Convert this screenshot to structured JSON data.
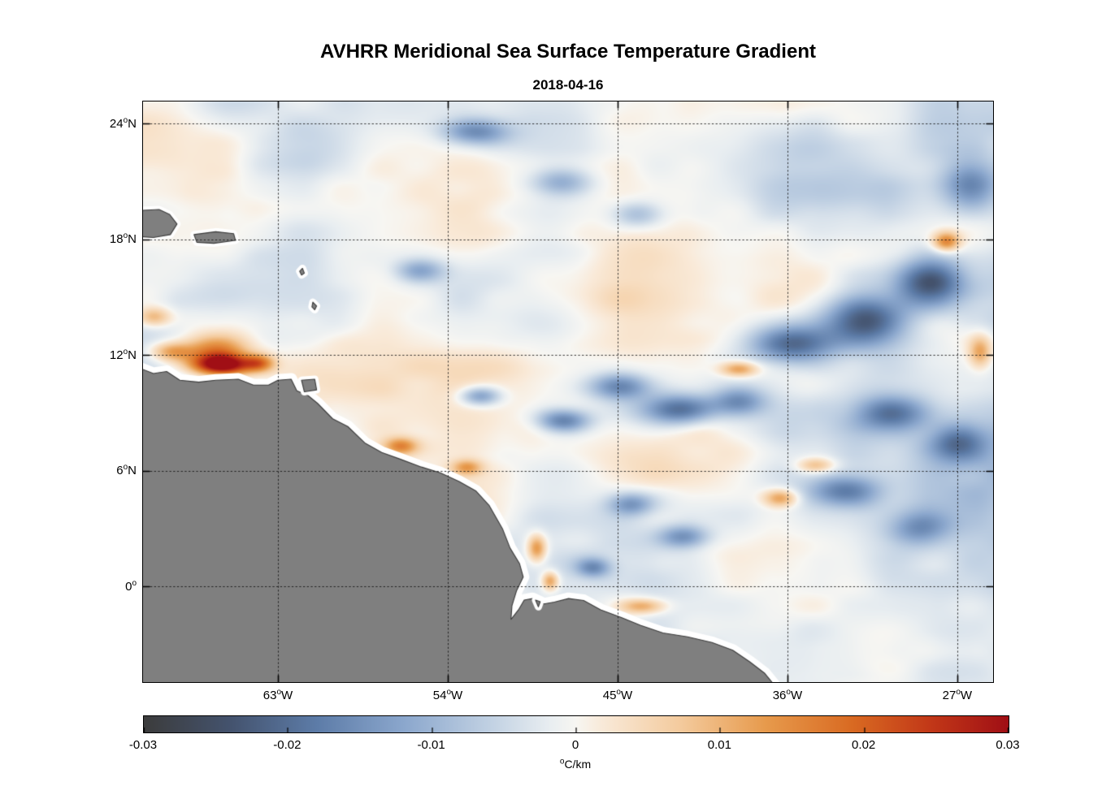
{
  "title": "AVHRR Meridional Sea Surface Temperature Gradient",
  "date": "2018-04-16",
  "chart_data": {
    "type": "heatmap",
    "title": "AVHRR Meridional Sea Surface Temperature Gradient",
    "subtitle": "2018-04-16",
    "lon_range": [
      -70.15,
      -25.1
    ],
    "lat_range": [
      -4.95,
      25.15
    ],
    "value_range": [
      -0.03,
      0.03
    ],
    "grid": {
      "on": true,
      "style": "dotted",
      "color": "rgba(20,20,20,0.85)"
    },
    "land_color": "#7f7f7f",
    "coast_halo_color": "#ffffff",
    "coast_line_color": "#3a3a3a",
    "lat_ticks": [
      {
        "value": 24,
        "text": "24",
        "sup": "o",
        "suffix": "N"
      },
      {
        "value": 18,
        "text": "18",
        "sup": "o",
        "suffix": "N"
      },
      {
        "value": 12,
        "text": "12",
        "sup": "o",
        "suffix": "N"
      },
      {
        "value": 6,
        "text": "6",
        "sup": "o",
        "suffix": "N"
      },
      {
        "value": 0,
        "text": "0",
        "sup": "o",
        "suffix": ""
      }
    ],
    "lon_ticks": [
      {
        "value": -63,
        "text": "63",
        "sup": "o",
        "suffix": "W"
      },
      {
        "value": -54,
        "text": "54",
        "sup": "o",
        "suffix": "W"
      },
      {
        "value": -45,
        "text": "45",
        "sup": "o",
        "suffix": "W"
      },
      {
        "value": -36,
        "text": "36",
        "sup": "o",
        "suffix": "W"
      },
      {
        "value": -27,
        "text": "27",
        "sup": "o",
        "suffix": "W"
      }
    ],
    "colorbar": {
      "ticks": [
        "-0.03",
        "-0.02",
        "-0.01",
        "0",
        "0.01",
        "0.02",
        "0.03"
      ],
      "label_sup": "o",
      "label_text": "C/km",
      "min": -0.03,
      "max": 0.03
    },
    "colormap": [
      [
        0.0,
        "#3c3c3c"
      ],
      [
        0.1,
        "#44536e"
      ],
      [
        0.2,
        "#5d7ca8"
      ],
      [
        0.3,
        "#8ba7cd"
      ],
      [
        0.4,
        "#c1d1e3"
      ],
      [
        0.47,
        "#e9eef1"
      ],
      [
        0.5,
        "#f7f6f2"
      ],
      [
        0.53,
        "#f9ead9"
      ],
      [
        0.62,
        "#f4cb9e"
      ],
      [
        0.72,
        "#e79a4c"
      ],
      [
        0.82,
        "#d96a22"
      ],
      [
        0.91,
        "#c23818"
      ],
      [
        1.0,
        "#a00f15"
      ]
    ],
    "noise": {
      "seed": 416,
      "octaves": [
        [
          230,
          0.36
        ],
        [
          115,
          0.3
        ],
        [
          56,
          0.22
        ],
        [
          27,
          0.12
        ]
      ],
      "amplitude": 0.0125,
      "x_stretch": 1.8,
      "bias_left": 0.0015,
      "bias_right": -0.0055
    },
    "features": [
      [
        -66.0,
        11.5,
        1.6,
        0.55,
        0.034
      ],
      [
        -66.4,
        12.3,
        1.9,
        0.8,
        0.017
      ],
      [
        -68.7,
        12.2,
        1.1,
        0.5,
        0.013
      ],
      [
        -69.6,
        14.0,
        0.9,
        0.5,
        0.012
      ],
      [
        -64.0,
        11.6,
        0.8,
        0.45,
        0.015
      ],
      [
        -56.5,
        7.3,
        0.9,
        0.45,
        0.015
      ],
      [
        -53.0,
        6.2,
        0.8,
        0.4,
        0.012
      ],
      [
        -49.3,
        2.0,
        0.5,
        0.7,
        0.016
      ],
      [
        -48.6,
        0.3,
        0.45,
        0.5,
        0.015
      ],
      [
        -43.7,
        -1.0,
        1.2,
        0.4,
        0.013
      ],
      [
        -52.3,
        9.9,
        1.1,
        0.5,
        -0.015
      ],
      [
        -47.9,
        8.6,
        1.4,
        0.6,
        -0.017
      ],
      [
        -44.9,
        10.4,
        1.6,
        0.7,
        -0.016
      ],
      [
        -41.8,
        9.2,
        2.0,
        0.8,
        -0.019
      ],
      [
        -38.6,
        9.6,
        1.4,
        0.8,
        -0.015
      ],
      [
        -44.3,
        4.3,
        1.2,
        0.6,
        -0.012
      ],
      [
        -41.5,
        2.6,
        1.3,
        0.6,
        -0.013
      ],
      [
        -46.3,
        1.0,
        0.9,
        0.5,
        -0.012
      ],
      [
        -35.8,
        12.6,
        2.2,
        1.0,
        -0.019
      ],
      [
        -32.0,
        13.8,
        2.0,
        1.2,
        -0.021
      ],
      [
        -28.5,
        15.7,
        1.8,
        1.3,
        -0.019
      ],
      [
        -26.3,
        20.8,
        1.6,
        1.3,
        -0.017
      ],
      [
        -30.5,
        9.0,
        2.0,
        0.9,
        -0.015
      ],
      [
        -27.0,
        7.5,
        1.5,
        1.0,
        -0.015
      ],
      [
        -33.0,
        5.0,
        1.8,
        0.8,
        -0.013
      ],
      [
        -29.0,
        3.0,
        1.6,
        0.9,
        -0.011
      ],
      [
        -52.5,
        23.6,
        1.8,
        0.7,
        -0.015
      ],
      [
        -55.5,
        16.4,
        1.3,
        0.6,
        -0.011
      ],
      [
        -48.0,
        21.0,
        1.5,
        0.7,
        -0.009
      ],
      [
        -44.0,
        19.3,
        1.4,
        0.7,
        -0.01
      ],
      [
        -27.6,
        17.9,
        0.7,
        0.5,
        0.017
      ],
      [
        -38.6,
        11.3,
        1.0,
        0.4,
        0.015
      ],
      [
        -36.4,
        4.6,
        0.9,
        0.45,
        0.014
      ],
      [
        -25.8,
        12.2,
        0.6,
        0.8,
        0.013
      ],
      [
        -34.5,
        6.3,
        1.0,
        0.4,
        0.011
      ]
    ],
    "coastline": [
      [
        -70.4,
        11.35
      ],
      [
        -69.6,
        11.05
      ],
      [
        -68.9,
        11.15
      ],
      [
        -68.2,
        10.7
      ],
      [
        -67.2,
        10.6
      ],
      [
        -66.3,
        10.7
      ],
      [
        -65.1,
        10.75
      ],
      [
        -64.3,
        10.45
      ],
      [
        -63.5,
        10.45
      ],
      [
        -63.0,
        10.7
      ],
      [
        -62.3,
        10.75
      ],
      [
        -62.0,
        10.15
      ],
      [
        -61.4,
        9.9
      ],
      [
        -60.9,
        9.5
      ],
      [
        -60.1,
        8.7
      ],
      [
        -59.3,
        8.3
      ],
      [
        -58.4,
        7.45
      ],
      [
        -57.5,
        6.95
      ],
      [
        -56.5,
        6.6
      ],
      [
        -55.4,
        6.2
      ],
      [
        -54.4,
        5.9
      ],
      [
        -53.4,
        5.45
      ],
      [
        -52.5,
        4.95
      ],
      [
        -51.8,
        4.2
      ],
      [
        -51.1,
        3.0
      ],
      [
        -50.7,
        2.0
      ],
      [
        -50.2,
        1.2
      ],
      [
        -50.0,
        0.5
      ],
      [
        -50.35,
        -0.2
      ],
      [
        -50.6,
        -1.0
      ],
      [
        -50.65,
        -1.7
      ],
      [
        -50.25,
        -1.2
      ],
      [
        -49.95,
        -0.7
      ],
      [
        -49.5,
        -0.62
      ],
      [
        -48.9,
        -0.9
      ],
      [
        -48.35,
        -0.8
      ],
      [
        -47.6,
        -0.62
      ],
      [
        -46.8,
        -0.72
      ],
      [
        -45.9,
        -1.2
      ],
      [
        -44.8,
        -1.6
      ],
      [
        -43.8,
        -2.0
      ],
      [
        -42.6,
        -2.4
      ],
      [
        -41.3,
        -2.6
      ],
      [
        -40.0,
        -2.9
      ],
      [
        -38.9,
        -3.3
      ],
      [
        -38.0,
        -3.9
      ],
      [
        -37.2,
        -4.5
      ],
      [
        -36.7,
        -5.1
      ],
      [
        -36.5,
        -5.5
      ],
      [
        -70.4,
        -5.5
      ]
    ],
    "islands": [
      [
        [
          -70.4,
          19.5
        ],
        [
          -69.3,
          19.55
        ],
        [
          -68.75,
          19.3
        ],
        [
          -68.35,
          18.8
        ],
        [
          -68.7,
          18.25
        ],
        [
          -69.6,
          18.1
        ],
        [
          -70.4,
          18.15
        ]
      ],
      [
        [
          -67.45,
          18.25
        ],
        [
          -66.3,
          18.4
        ],
        [
          -65.35,
          18.3
        ],
        [
          -65.25,
          17.95
        ],
        [
          -66.4,
          17.8
        ],
        [
          -67.3,
          17.85
        ]
      ],
      [
        [
          -61.85,
          16.35
        ],
        [
          -61.7,
          16.5
        ],
        [
          -61.6,
          16.25
        ],
        [
          -61.75,
          16.15
        ]
      ],
      [
        [
          -61.15,
          14.75
        ],
        [
          -60.95,
          14.55
        ],
        [
          -61.05,
          14.35
        ],
        [
          -61.2,
          14.5
        ]
      ],
      [
        [
          -61.75,
          10.7
        ],
        [
          -61.05,
          10.75
        ],
        [
          -60.95,
          10.2
        ],
        [
          -61.6,
          10.1
        ]
      ],
      [
        [
          -49.35,
          -0.7
        ],
        [
          -49.1,
          -0.78
        ],
        [
          -49.2,
          -1.05
        ]
      ]
    ]
  }
}
